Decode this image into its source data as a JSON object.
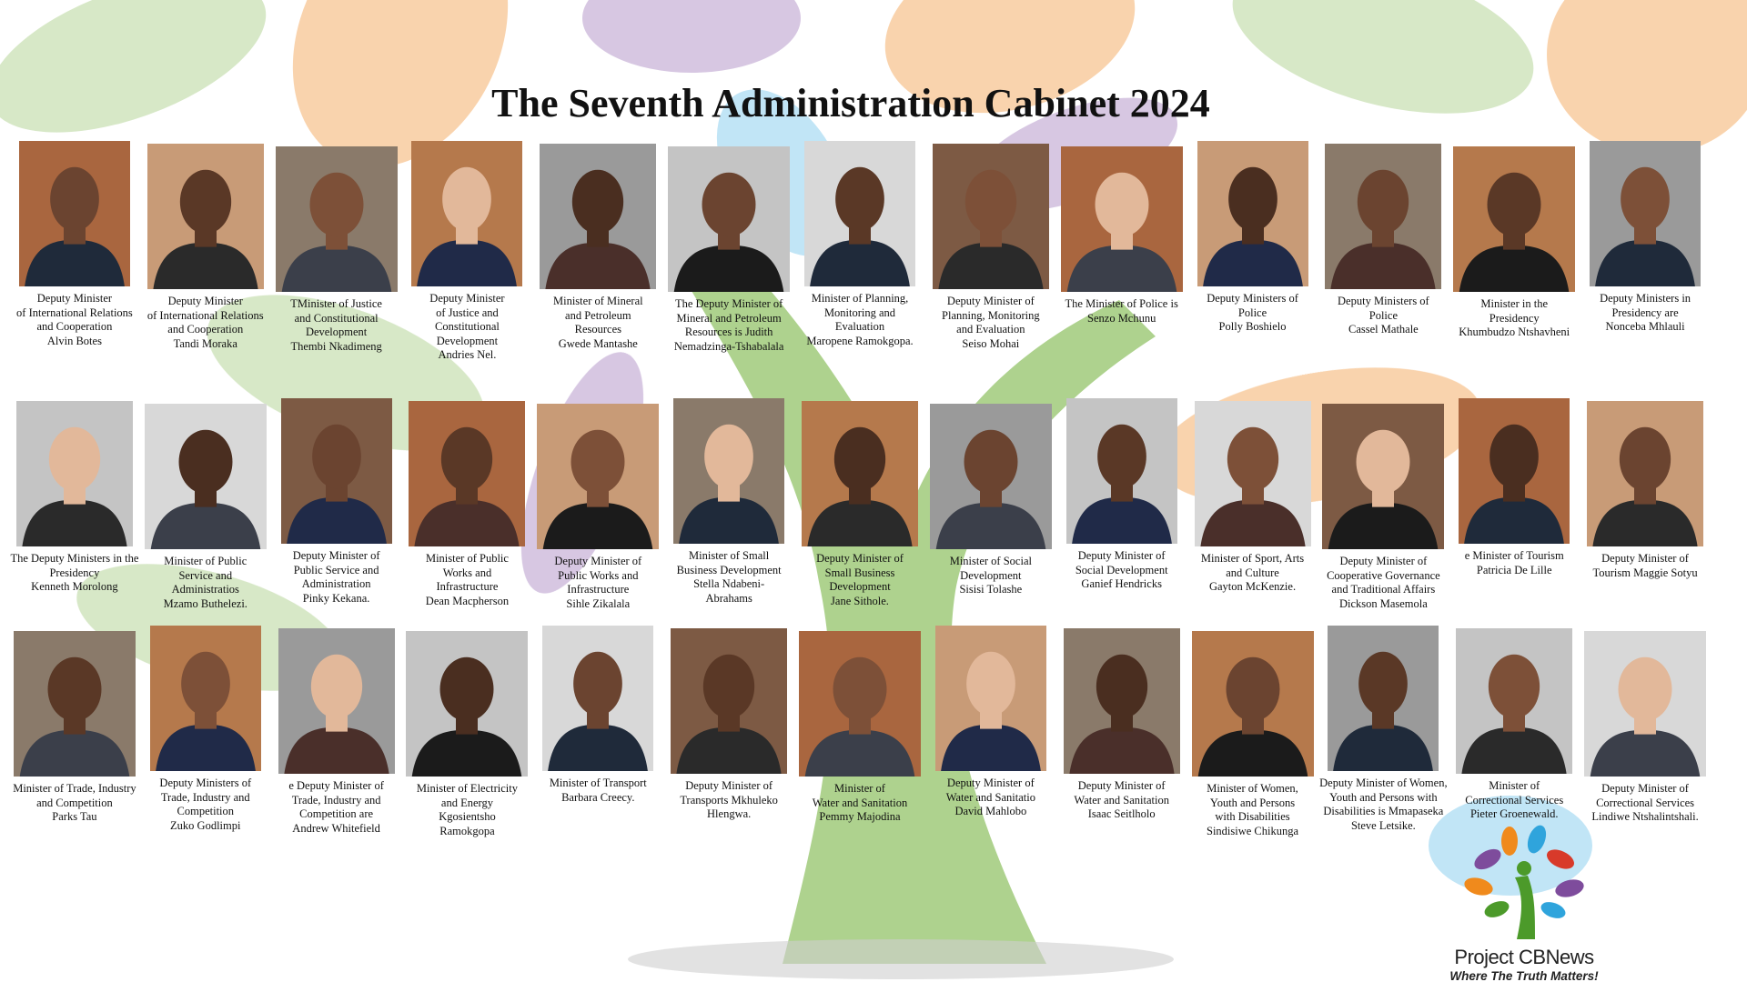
{
  "title": "The Seventh Administration Cabinet 2024",
  "rows": [
    [
      {
        "caption": [
          "Deputy Minister",
          "of International Relations",
          "and Cooperation",
          "Alvin Botes"
        ]
      },
      {
        "caption": [
          "Deputy Minister",
          "of International Relations",
          "and Cooperation",
          "Tandi Moraka"
        ]
      },
      {
        "caption": [
          "TMinister of Justice",
          "and Constitutional",
          "Development",
          "Thembi Nkadimeng"
        ]
      },
      {
        "caption": [
          "Deputy Minister",
          "of Justice and",
          "Constitutional",
          "Development",
          "Andries Nel."
        ]
      },
      {
        "caption": [
          "Minister of Mineral",
          "and Petroleum",
          "Resources",
          "Gwede Mantashe"
        ]
      },
      {
        "caption": [
          "The Deputy Minister of",
          "Mineral and Petroleum",
          "Resources is Judith",
          "Nemadzinga-Tshabalala"
        ]
      },
      {
        "caption": [
          "Minister of Planning,",
          "Monitoring and",
          "Evaluation",
          "Maropene Ramokgopa."
        ]
      },
      {
        "caption": [
          "Deputy Minister of",
          "Planning, Monitoring",
          "and Evaluation",
          "Seiso Mohai"
        ]
      },
      {
        "caption": [
          "The Minister of Police is",
          "Senzo Mchunu"
        ]
      },
      {
        "caption": [
          "Deputy Ministers of",
          "Police",
          "Polly Boshielo"
        ]
      },
      {
        "caption": [
          "Deputy Ministers of",
          "Police",
          "Cassel Mathale"
        ]
      },
      {
        "caption": [
          "Minister in the",
          "Presidency",
          "Khumbudzo Ntshavheni"
        ]
      },
      {
        "caption": [
          "Deputy Ministers in",
          "Presidency are",
          "Nonceba Mhlauli"
        ]
      }
    ],
    [
      {
        "caption": [
          "The Deputy Ministers in the",
          "Presidency",
          "Kenneth Morolong"
        ]
      },
      {
        "caption": [
          "Minister of Public",
          "Service and",
          "Administratios",
          "Mzamo Buthelezi."
        ]
      },
      {
        "caption": [
          "Deputy Minister of",
          "Public Service and",
          "Administration",
          "Pinky Kekana."
        ]
      },
      {
        "caption": [
          "Minister of Public",
          "Works and",
          "Infrastructure",
          "Dean Macpherson"
        ]
      },
      {
        "caption": [
          "Deputy Minister of",
          "Public Works and",
          "Infrastructure",
          "Sihle Zikalala"
        ]
      },
      {
        "caption": [
          "Minister of Small",
          "Business Development",
          "Stella Ndabeni-",
          "Abrahams"
        ]
      },
      {
        "caption": [
          "Deputy Minister of",
          "Small Business",
          "Development",
          "Jane Sithole."
        ]
      },
      {
        "caption": [
          "Minister of Social",
          "Development",
          "Sisisi Tolashe"
        ]
      },
      {
        "caption": [
          "Deputy Minister of",
          "Social Development",
          "Ganief Hendricks"
        ]
      },
      {
        "caption": [
          "Minister of Sport, Arts",
          "and Culture",
          "Gayton McKenzie."
        ]
      },
      {
        "caption": [
          "Deputy Minister of",
          "Cooperative Governance",
          "and Traditional Affairs",
          "Dickson Masemola"
        ]
      },
      {
        "caption": [
          "e Minister of Tourism",
          "Patricia De Lille"
        ]
      },
      {
        "caption": [
          "Deputy Minister of",
          "Tourism  Maggie Sotyu"
        ]
      }
    ],
    [
      {
        "caption": [
          "Minister of Trade, Industry",
          "and Competition",
          "Parks Tau"
        ]
      },
      {
        "caption": [
          "Deputy Ministers of",
          "Trade, Industry and",
          "Competition",
          "Zuko Godlimpi"
        ]
      },
      {
        "caption": [
          "e Deputy Minister of",
          "Trade, Industry and",
          "Competition are",
          "Andrew Whitefield"
        ]
      },
      {
        "caption": [
          "Minister of Electricity",
          "and Energy",
          "Kgosientsho",
          "Ramokgopa"
        ]
      },
      {
        "caption": [
          "Minister of Transport",
          "Barbara Creecy."
        ]
      },
      {
        "caption": [
          "Deputy Minister of",
          "Transports Mkhuleko",
          "Hlengwa."
        ]
      },
      {
        "caption": [
          "Minister of",
          "Water and Sanitation",
          "Pemmy Majodina"
        ]
      },
      {
        "caption": [
          "Deputy Minister of",
          "Water and Sanitatio",
          "David Mahlobo"
        ]
      },
      {
        "caption": [
          "Deputy Minister of",
          "Water and Sanitation",
          "Isaac Seitlholo"
        ]
      },
      {
        "caption": [
          "Minister of Women,",
          "Youth and Persons",
          "with Disabilities",
          "Sindisiwe Chikunga"
        ]
      },
      {
        "caption": [
          "Deputy Minister of Women,",
          "Youth and Persons with",
          "Disabilities is Mmapaseka",
          "Steve Letsike."
        ]
      },
      {
        "caption": [
          "Minister of",
          "Correctional Services",
          "Pieter Groenewald."
        ]
      },
      {
        "caption": [
          "Deputy Minister of",
          "Correctional Services",
          "Lindiwe Ntshalintshali."
        ]
      }
    ]
  ],
  "logo": {
    "name": "Project CBNews",
    "tagline": "Where The Truth Matters!"
  }
}
